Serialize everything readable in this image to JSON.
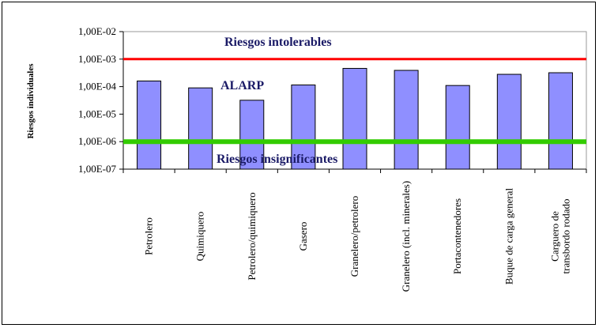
{
  "chart_data": {
    "type": "bar",
    "ylabel": "Riesgos individuales",
    "y_scale": "log",
    "ylim": [
      1e-07,
      0.01
    ],
    "y_ticks": [
      "1,00E-02",
      "1,00E-03",
      "1,00E-04",
      "1,00E-05",
      "1,00E-06",
      "1,00E-07"
    ],
    "categories": [
      [
        "Petrolero"
      ],
      [
        "Quimiquero"
      ],
      [
        "Petrolero/quimiquero"
      ],
      [
        "Gasero"
      ],
      [
        "Granelero/petrolero"
      ],
      [
        "Granelero (incl. minerales)"
      ],
      [
        "Portacontenedores"
      ],
      [
        "Buque de carga general"
      ],
      [
        "Carguero de",
        "transbordo rodado"
      ]
    ],
    "values": [
      0.00016,
      9e-05,
      3.2e-05,
      0.000115,
      0.00046,
      0.00039,
      0.00011,
      0.00028,
      0.00032
    ],
    "grid": false,
    "legend": "none",
    "bar_color": "#8f8fff",
    "reference_lines": [
      {
        "label": "Riesgos intolerables",
        "value": 0.001,
        "color": "#ff0000"
      },
      {
        "label": "Riesgos insignificantes",
        "value": 1e-06,
        "color": "#33cc00"
      }
    ],
    "region_labels": [
      {
        "label": "ALARP"
      }
    ]
  }
}
